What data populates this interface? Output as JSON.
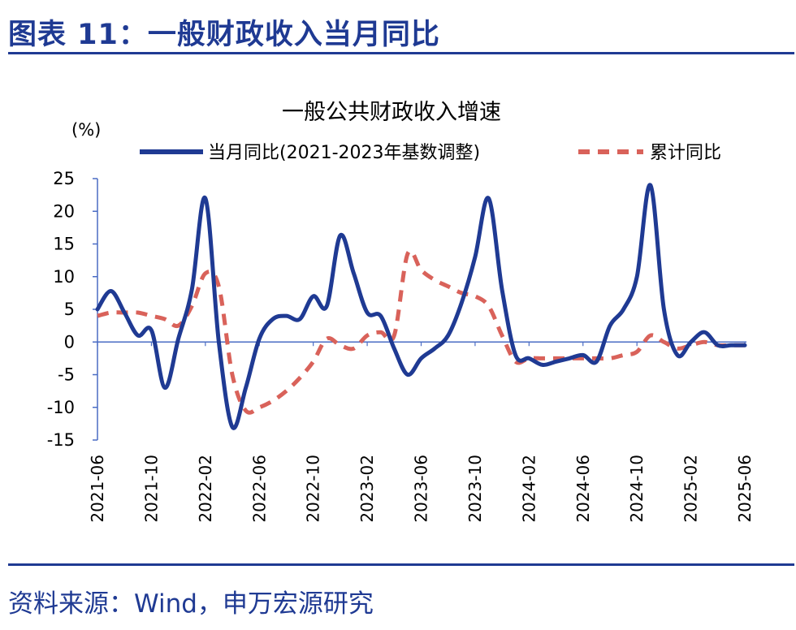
{
  "header": {
    "title": "图表 11：一般财政收入当月同比"
  },
  "source": "资料来源：Wind，申万宏源研究",
  "colors": {
    "brand": "#1F3A93",
    "monthly_series": "#1F3A93",
    "cumulative_series": "#D9625A",
    "axis": "#4A6CC4"
  },
  "chart_data": {
    "type": "line",
    "title": "一般公共财政收入增速",
    "ylabel": "(%)",
    "ylim": [
      -15,
      25
    ],
    "yticks": [
      25,
      20,
      15,
      10,
      5,
      0,
      -5,
      -10,
      -15
    ],
    "grid": false,
    "legend_position": "top",
    "x": [
      "2021-06",
      "2021-07",
      "2021-08",
      "2021-09",
      "2021-10",
      "2021-11",
      "2021-12",
      "2022-01",
      "2022-02",
      "2022-03",
      "2022-04",
      "2022-05",
      "2022-06",
      "2022-07",
      "2022-08",
      "2022-09",
      "2022-10",
      "2022-11",
      "2022-12",
      "2023-01",
      "2023-02",
      "2023-03",
      "2023-04",
      "2023-05",
      "2023-06",
      "2023-07",
      "2023-08",
      "2023-09",
      "2023-10",
      "2023-11",
      "2023-12",
      "2024-01",
      "2024-02",
      "2024-03",
      "2024-04",
      "2024-05",
      "2024-06",
      "2024-07",
      "2024-08",
      "2024-09",
      "2024-10",
      "2024-11",
      "2024-12",
      "2025-01",
      "2025-02",
      "2025-03",
      "2025-04",
      "2025-05",
      "2025-06"
    ],
    "x_tick_labels": [
      "2021-06",
      "2021-10",
      "2022-02",
      "2022-06",
      "2022-10",
      "2023-02",
      "2023-06",
      "2023-10",
      "2024-02",
      "2024-06",
      "2024-10",
      "2025-02",
      "2025-06"
    ],
    "series": [
      {
        "name": "当月同比(2021-2023年基数调整)",
        "style": "solid",
        "values": [
          5.0,
          7.8,
          4.5,
          1.0,
          1.8,
          -7.0,
          0.5,
          8.0,
          22.0,
          0.0,
          -13.0,
          -7.0,
          0.5,
          3.5,
          4.0,
          3.5,
          7.0,
          5.5,
          16.3,
          10.5,
          4.5,
          4.0,
          -1.0,
          -5.0,
          -2.5,
          -1.0,
          1.0,
          6.0,
          13.0,
          22.0,
          8.0,
          -2.0,
          -2.5,
          -3.5,
          -3.0,
          -2.5,
          -2.0,
          -3.0,
          2.5,
          5.0,
          10.0,
          24.0,
          5.0,
          -2.0,
          0.0,
          1.5,
          -0.5,
          -0.5,
          -0.5
        ]
      },
      {
        "name": "累计同比",
        "style": "dashed",
        "values": [
          4.0,
          4.5,
          4.5,
          4.5,
          4.0,
          3.5,
          2.5,
          5.5,
          10.5,
          8.5,
          -5.0,
          -10.5,
          -10.0,
          -9.0,
          -7.5,
          -5.5,
          -3.0,
          0.5,
          -0.5,
          -1.0,
          1.0,
          1.5,
          1.0,
          13.5,
          11.0,
          9.5,
          8.5,
          7.5,
          7.0,
          5.5,
          1.0,
          -3.0,
          -2.5,
          -2.5,
          -2.5,
          -2.5,
          -2.5,
          -2.5,
          -2.5,
          -2.0,
          -1.5,
          1.0,
          0.0,
          -1.0,
          -0.5,
          0.0,
          -0.5,
          -0.5,
          -0.5
        ]
      }
    ]
  }
}
